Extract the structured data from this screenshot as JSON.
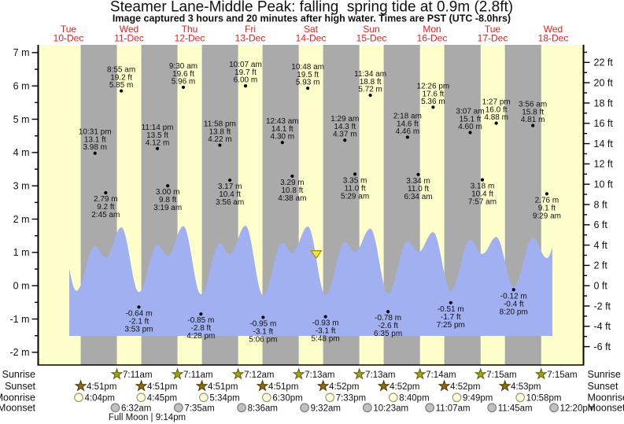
{
  "header": {
    "title": "Steamer Lane-Middle Peak: falling  spring tide at 0.9m (2.8ft)",
    "subtitle": "Image captured 3 hours and 20 minutes after high water. Times are PST (UTC -8.0hrs)"
  },
  "days": [
    {
      "weekday": "Tue",
      "date": "10-Dec"
    },
    {
      "weekday": "Wed",
      "date": "11-Dec"
    },
    {
      "weekday": "Thu",
      "date": "12-Dec"
    },
    {
      "weekday": "Fri",
      "date": "13-Dec"
    },
    {
      "weekday": "Sat",
      "date": "14-Dec"
    },
    {
      "weekday": "Sun",
      "date": "15-Dec"
    },
    {
      "weekday": "Mon",
      "date": "16-Dec"
    },
    {
      "weekday": "Tue",
      "date": "17-Dec"
    },
    {
      "weekday": "Wed",
      "date": "18-Dec"
    }
  ],
  "chart_data": {
    "type": "area",
    "title": "Tide height curve, Dec 10 - Dec 18, two highs and two lows per day",
    "y_axis_left": {
      "unit": "m",
      "min": -2,
      "max": 7,
      "label_step": 1,
      "minor_step": 0.5
    },
    "y_axis_right": {
      "unit": "ft",
      "min": -6,
      "max": 22,
      "label_step": 2,
      "minor_step": 1
    },
    "tide_events": [
      {
        "day": 0,
        "time": "10:31 pm",
        "m": 3.98,
        "m_label": "3.98 m",
        "ft_label": "13.1 ft",
        "kind": "high",
        "label_position": "above"
      },
      {
        "day": 1,
        "time": "2:45 am",
        "m": 2.79,
        "m_label": "2.79 m",
        "ft_label": "9.2 ft",
        "kind": "low",
        "label_position": "below"
      },
      {
        "day": 1,
        "time": "8:55 am",
        "m": 5.85,
        "m_label": "5.85 m",
        "ft_label": "19.2 ft",
        "kind": "high",
        "label_position": "above"
      },
      {
        "day": 1,
        "time": "3:53 pm",
        "m": -0.64,
        "m_label": "-0.64 m",
        "ft_label": "-2.1 ft",
        "kind": "low",
        "label_position": "below"
      },
      {
        "day": 1,
        "time": "11:14 pm",
        "m": 4.12,
        "m_label": "4.12 m",
        "ft_label": "13.5 ft",
        "kind": "high",
        "label_position": "above"
      },
      {
        "day": 2,
        "time": "3:19 am",
        "m": 3.0,
        "m_label": "3.00 m",
        "ft_label": "9.8 ft",
        "kind": "low",
        "label_position": "below"
      },
      {
        "day": 2,
        "time": "9:30 am",
        "m": 5.96,
        "m_label": "5.96 m",
        "ft_label": "19.6 ft",
        "kind": "high",
        "label_position": "above"
      },
      {
        "day": 2,
        "time": "4:28 pm",
        "m": -0.85,
        "m_label": "-0.85 m",
        "ft_label": "-2.8 ft",
        "kind": "low",
        "label_position": "below"
      },
      {
        "day": 2,
        "time": "11:58 pm",
        "m": 4.22,
        "m_label": "4.22 m",
        "ft_label": "13.8 ft",
        "kind": "high",
        "label_position": "above"
      },
      {
        "day": 3,
        "time": "3:56 am",
        "m": 3.17,
        "m_label": "3.17 m",
        "ft_label": "10.4 ft",
        "kind": "low",
        "label_position": "below"
      },
      {
        "day": 3,
        "time": "10:07 am",
        "m": 6.0,
        "m_label": "6.00 m",
        "ft_label": "19.7 ft",
        "kind": "high",
        "label_position": "above"
      },
      {
        "day": 3,
        "time": "5:06 pm",
        "m": -0.95,
        "m_label": "-0.95 m",
        "ft_label": "-3.1 ft",
        "kind": "low",
        "label_position": "below"
      },
      {
        "day": 4,
        "time": "12:43 am",
        "m": 4.3,
        "m_label": "4.30 m",
        "ft_label": "14.1 ft",
        "kind": "high",
        "label_position": "above"
      },
      {
        "day": 4,
        "time": "4:38 am",
        "m": 3.29,
        "m_label": "3.29 m",
        "ft_label": "10.8 ft",
        "kind": "low",
        "label_position": "below"
      },
      {
        "day": 4,
        "time": "10:48 am",
        "m": 5.93,
        "m_label": "5.93 m",
        "ft_label": "19.5 ft",
        "kind": "high",
        "label_position": "above"
      },
      {
        "day": 4,
        "time": "5:48 pm",
        "m": -0.93,
        "m_label": "-0.93 m",
        "ft_label": "-3.1 ft",
        "kind": "low",
        "label_position": "below"
      },
      {
        "day": 5,
        "time": "1:29 am",
        "m": 4.37,
        "m_label": "4.37 m",
        "ft_label": "14.3 ft",
        "kind": "high",
        "label_position": "above"
      },
      {
        "day": 5,
        "time": "5:29 am",
        "m": 3.35,
        "m_label": "3.35 m",
        "ft_label": "11.0 ft",
        "kind": "low",
        "label_position": "below"
      },
      {
        "day": 5,
        "time": "11:34 am",
        "m": 5.72,
        "m_label": "5.72 m",
        "ft_label": "18.8 ft",
        "kind": "high",
        "label_position": "above"
      },
      {
        "day": 5,
        "time": "6:35 pm",
        "m": -0.78,
        "m_label": "-0.78 m",
        "ft_label": "-2.6 ft",
        "kind": "low",
        "label_position": "below"
      },
      {
        "day": 6,
        "time": "2:18 am",
        "m": 4.46,
        "m_label": "4.46 m",
        "ft_label": "14.6 ft",
        "kind": "high",
        "label_position": "above"
      },
      {
        "day": 6,
        "time": "6:34 am",
        "m": 3.34,
        "m_label": "3.34 m",
        "ft_label": "11.0 ft",
        "kind": "low",
        "label_position": "below"
      },
      {
        "day": 6,
        "time": "12:26 pm",
        "m": 5.36,
        "m_label": "5.36 m",
        "ft_label": "17.6 ft",
        "kind": "high",
        "label_position": "above"
      },
      {
        "day": 6,
        "time": "7:25 pm",
        "m": -0.51,
        "m_label": "-0.51 m",
        "ft_label": "-1.7 ft",
        "kind": "low",
        "label_position": "below"
      },
      {
        "day": 7,
        "time": "3:07 am",
        "m": 4.6,
        "m_label": "4.60 m",
        "ft_label": "15.1 ft",
        "kind": "high",
        "label_position": "above"
      },
      {
        "day": 7,
        "time": "7:57 am",
        "m": 3.18,
        "m_label": "3.18 m",
        "ft_label": "10.4 ft",
        "kind": "low",
        "label_position": "below"
      },
      {
        "day": 7,
        "time": "1:27 pm",
        "m": 4.88,
        "m_label": "4.88 m",
        "ft_label": "16.0 ft",
        "kind": "high",
        "label_position": "above"
      },
      {
        "day": 7,
        "time": "8:20 pm",
        "m": -0.12,
        "m_label": "-0.12 m",
        "ft_label": "-0.4 ft",
        "kind": "low",
        "label_position": "below"
      },
      {
        "day": 8,
        "time": "3:56 am",
        "m": 4.81,
        "m_label": "4.81 m",
        "ft_label": "15.8 ft",
        "kind": "high",
        "label_position": "above"
      },
      {
        "day": 8,
        "time": "9:29 am",
        "m": 2.76,
        "m_label": "2.76 m",
        "ft_label": "9.1 ft",
        "kind": "low",
        "label_position": "below"
      }
    ],
    "curve_virtual_start": [
      {
        "day": 0,
        "time": "8:10 am",
        "m": 5.7
      },
      {
        "day": 0,
        "time": "3:10 pm",
        "m": -0.5
      }
    ],
    "curve_virtual_end": [
      {
        "day": 8,
        "time": "2:40 pm",
        "m": 5.6
      }
    ],
    "current_time_marker": {
      "day": 4,
      "time": "2:08 pm"
    }
  },
  "sun_moon": {
    "rows": [
      {
        "label": "Sunrise",
        "icon": "sunrise-star",
        "events": [
          {
            "day": 1,
            "time": "7:11am"
          },
          {
            "day": 2,
            "time": "7:11am"
          },
          {
            "day": 3,
            "time": "7:12am"
          },
          {
            "day": 4,
            "time": "7:13am"
          },
          {
            "day": 5,
            "time": "7:13am"
          },
          {
            "day": 6,
            "time": "7:14am"
          },
          {
            "day": 7,
            "time": "7:15am"
          },
          {
            "day": 8,
            "time": "7:15am"
          }
        ]
      },
      {
        "label": "Sunset",
        "icon": "sunset-star",
        "events": [
          {
            "day": 0,
            "time": "4:51pm"
          },
          {
            "day": 1,
            "time": "4:51pm"
          },
          {
            "day": 2,
            "time": "4:51pm"
          },
          {
            "day": 3,
            "time": "4:51pm"
          },
          {
            "day": 4,
            "time": "4:52pm"
          },
          {
            "day": 5,
            "time": "4:52pm"
          },
          {
            "day": 6,
            "time": "4:52pm"
          },
          {
            "day": 7,
            "time": "4:53pm"
          }
        ]
      },
      {
        "label": "Moonrise",
        "icon": "moonrise-circle",
        "events": [
          {
            "day": 0,
            "time": "4:04pm"
          },
          {
            "day": 1,
            "time": "4:45pm"
          },
          {
            "day": 2,
            "time": "5:34pm"
          },
          {
            "day": 3,
            "time": "6:30pm"
          },
          {
            "day": 4,
            "time": "7:33pm"
          },
          {
            "day": 5,
            "time": "8:40pm"
          },
          {
            "day": 6,
            "time": "9:49pm"
          },
          {
            "day": 7,
            "time": "10:58pm"
          }
        ]
      },
      {
        "label": "Moonset",
        "icon": "moonset-circle",
        "events": [
          {
            "day": 1,
            "time": "6:32am"
          },
          {
            "day": 2,
            "time": "7:35am"
          },
          {
            "day": 3,
            "time": "8:36am"
          },
          {
            "day": 4,
            "time": "9:32am"
          },
          {
            "day": 5,
            "time": "10:23am"
          },
          {
            "day": 6,
            "time": "11:07am"
          },
          {
            "day": 7,
            "time": "11:45am"
          },
          {
            "day": 8,
            "time": "12:20pm"
          }
        ]
      }
    ],
    "footnote": "Full Moon | 9:14pm"
  },
  "colors": {
    "day_band": "#ffffcc",
    "night_band": "#aaaaaa",
    "tide_fill": "#a0b0f0",
    "date_red": "#ee1c1c",
    "sunrise_star": "#a2a211",
    "sunrise_star_edge": "#5e5e00",
    "sunset_star": "#8f6b10",
    "sunset_star_edge": "#4a3800",
    "moonrise_fill": "#ffffdd",
    "moonrise_edge": "#9a9a70",
    "moonset_fill": "#c0c0c0",
    "moonset_edge": "#7f7f7f",
    "marker_fill": "#f4e64e",
    "marker_edge": "#9f9400",
    "axis": "#000000"
  }
}
